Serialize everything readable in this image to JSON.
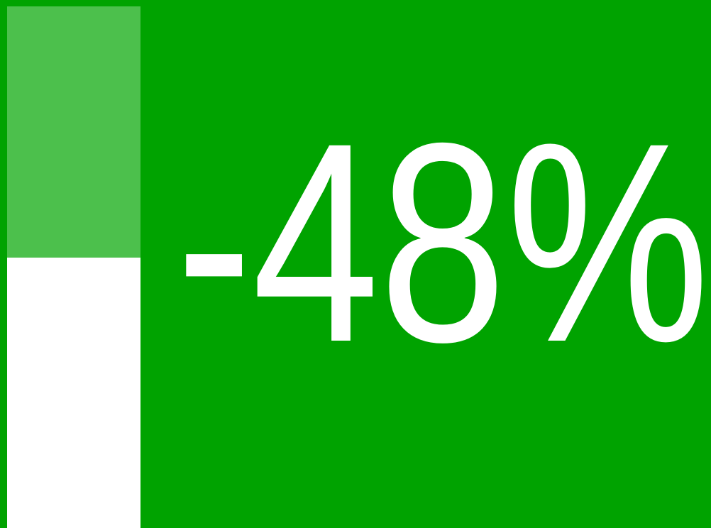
{
  "indicator": {
    "label": "-48%"
  }
}
